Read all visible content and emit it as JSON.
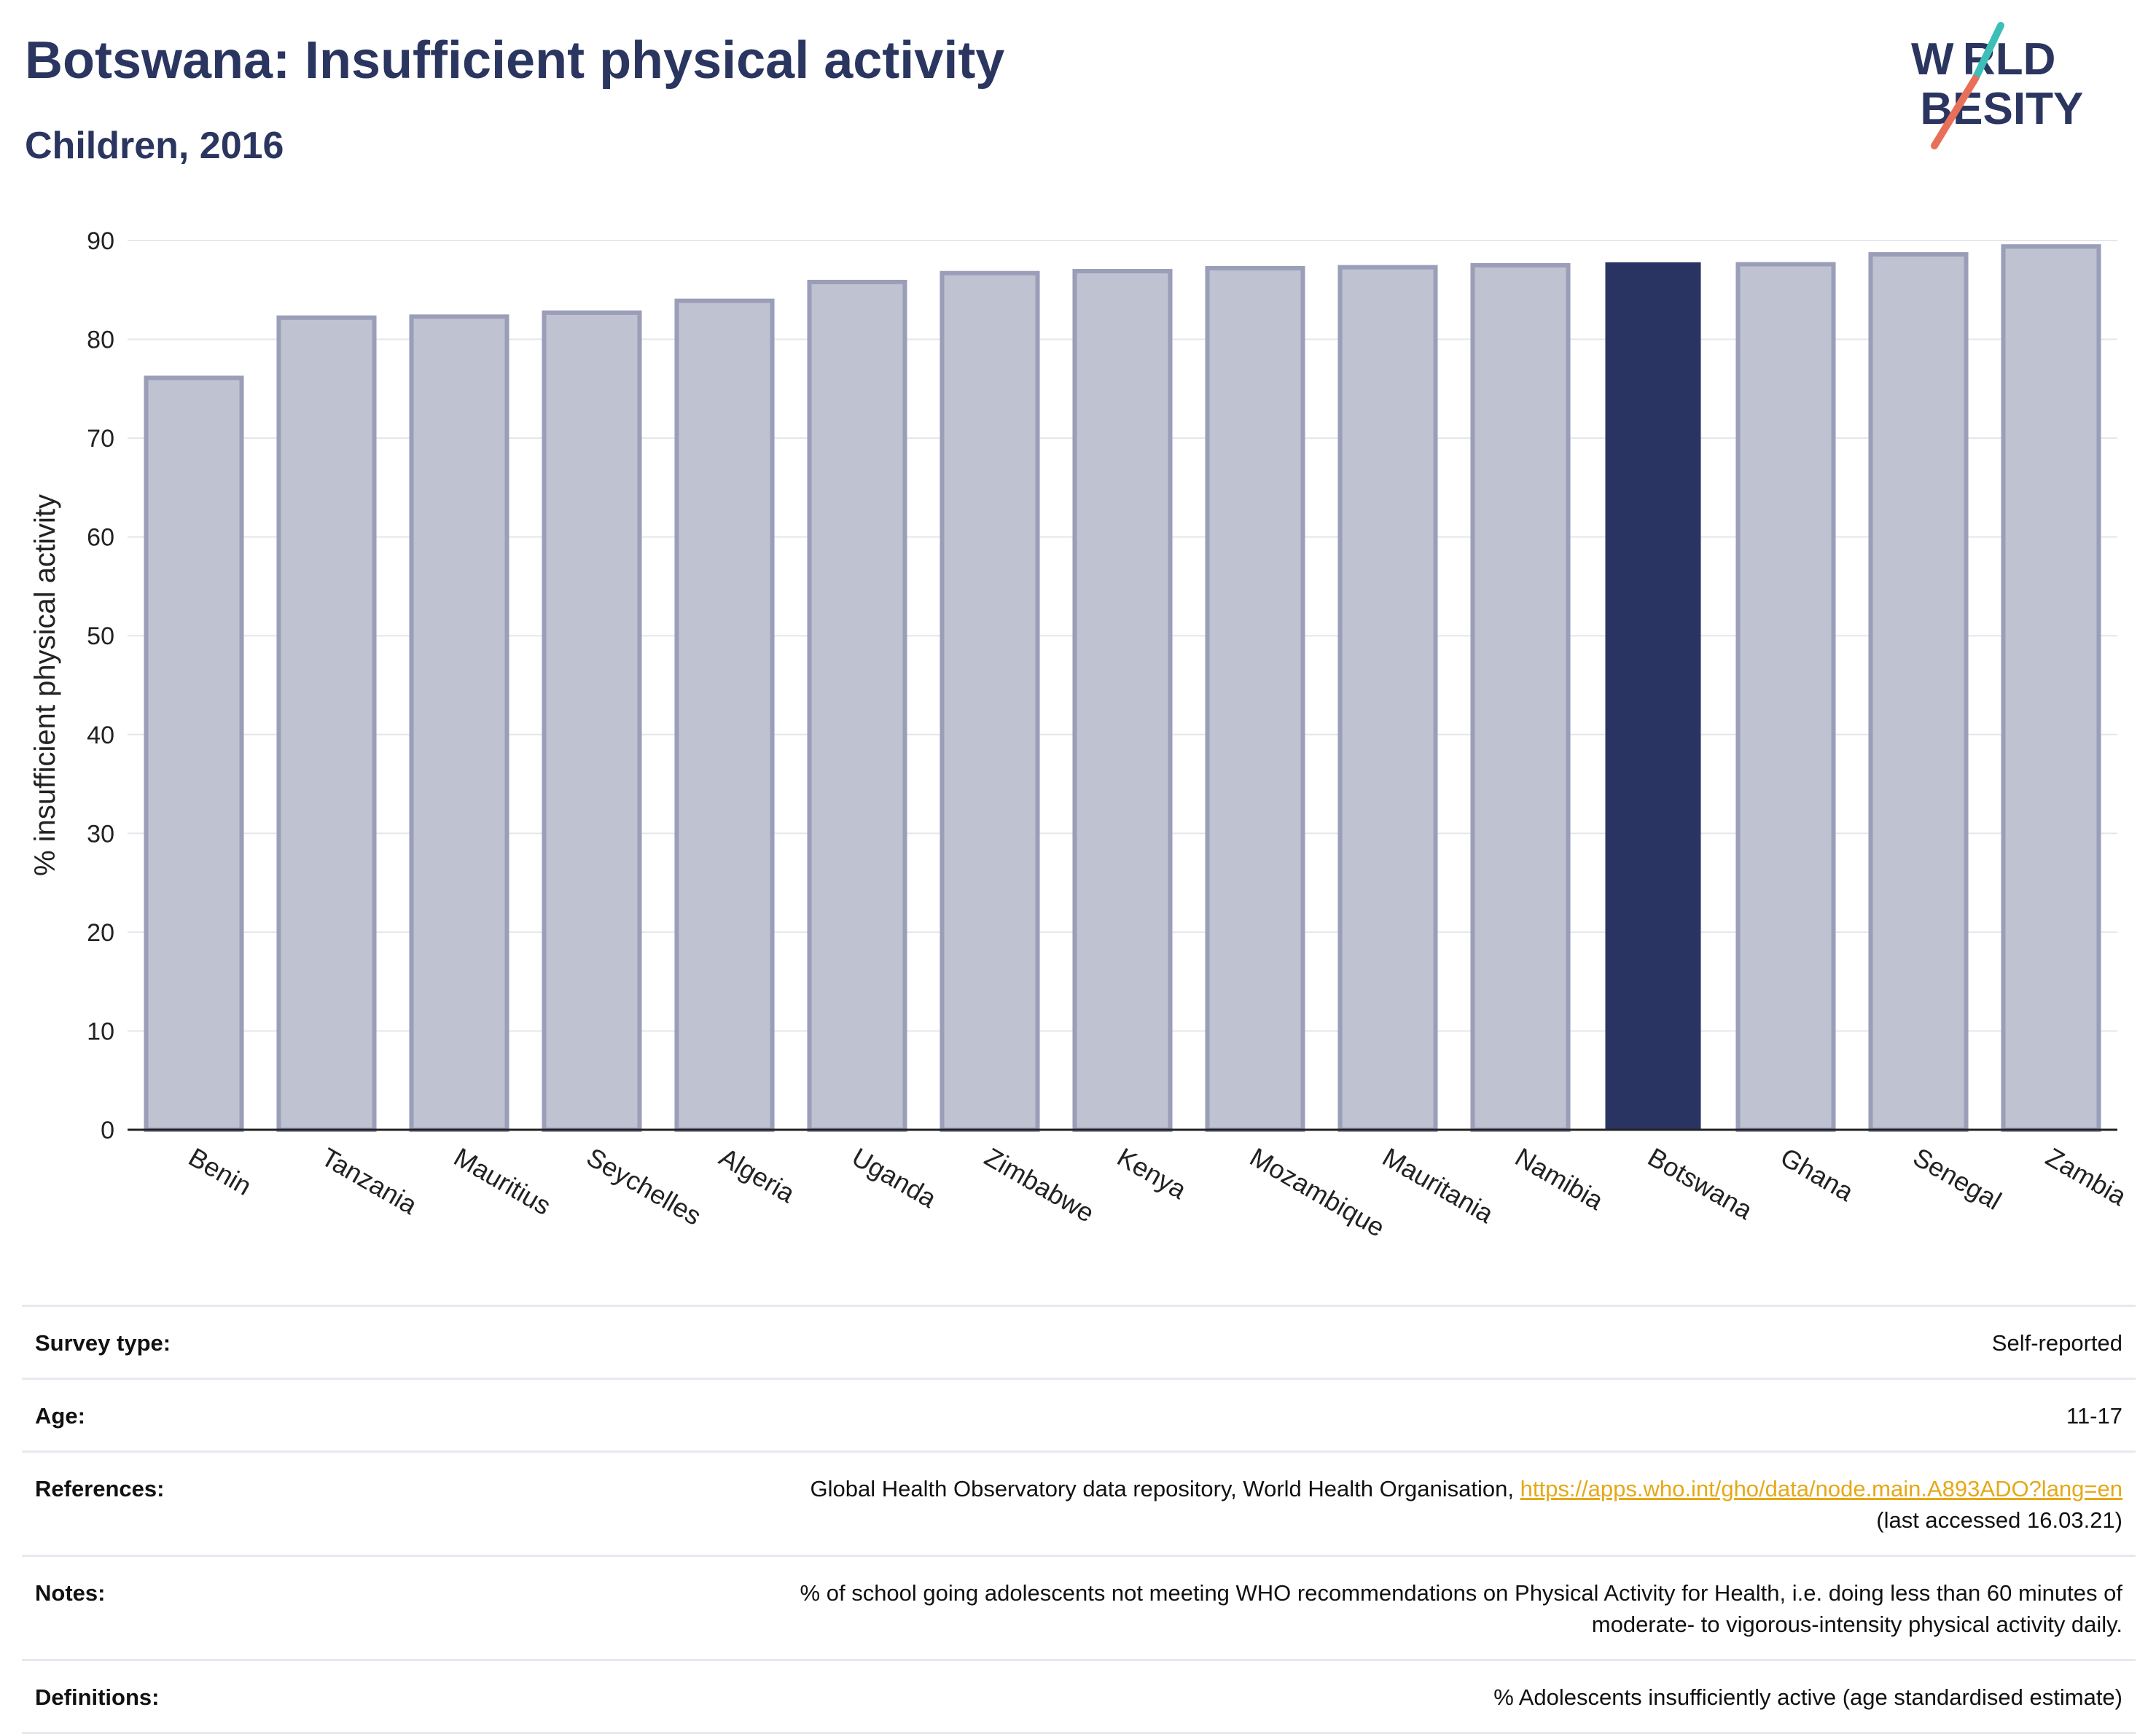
{
  "header": {
    "title": "Botswana: Insufficient physical activity",
    "subtitle": "Children, 2016"
  },
  "logo": {
    "line1": "W RLD",
    "line2": " BESITY",
    "accent_teal": "#3dbfb8",
    "accent_coral": "#e8705a",
    "text_color": "#2a3560"
  },
  "chart_data": {
    "type": "bar",
    "categories": [
      "Benin",
      "Tanzania",
      "Mauritius",
      "Seychelles",
      "Algeria",
      "Uganda",
      "Zimbabwe",
      "Kenya",
      "Mozambique",
      "Mauritania",
      "Namibia",
      "Botswana",
      "Ghana",
      "Senegal",
      "Zambia"
    ],
    "values": [
      76.1,
      82.2,
      82.3,
      82.7,
      83.9,
      85.8,
      86.7,
      86.9,
      87.2,
      87.3,
      87.5,
      87.8,
      87.6,
      88.6,
      89.4
    ],
    "highlight": "Botswana",
    "ylabel": "% insufficient physical activity",
    "xlabel": "",
    "ylim": [
      0,
      90
    ],
    "yticks": [
      0,
      10,
      20,
      30,
      40,
      50,
      60,
      70,
      80,
      90
    ],
    "grid": true,
    "colors": {
      "bar": "#bfc2d0",
      "bar_border": "#9a9eb8",
      "highlight": "#293462",
      "grid": "#e4e6ec",
      "axis": "#222222"
    }
  },
  "info": {
    "survey_type": {
      "label": "Survey type:",
      "value": "Self-reported"
    },
    "age": {
      "label": "Age:",
      "value": "11-17"
    },
    "references": {
      "label": "References:",
      "text": "Global Health Observatory data repository, World Health Organisation, ",
      "link": "https://apps.who.int/gho/data/node.main.A893ADO?lang=en",
      "suffix": "(last accessed 16.03.21)"
    },
    "notes": {
      "label": "Notes:",
      "line1": "% of school going adolescents not meeting WHO recommendations on Physical Activity for Health, i.e. doing less than 60 minutes of",
      "line2": "moderate- to vigorous-intensity physical activity daily."
    },
    "definitions": {
      "label": "Definitions:",
      "value": "% Adolescents insufficiently active (age standardised estimate)"
    }
  }
}
